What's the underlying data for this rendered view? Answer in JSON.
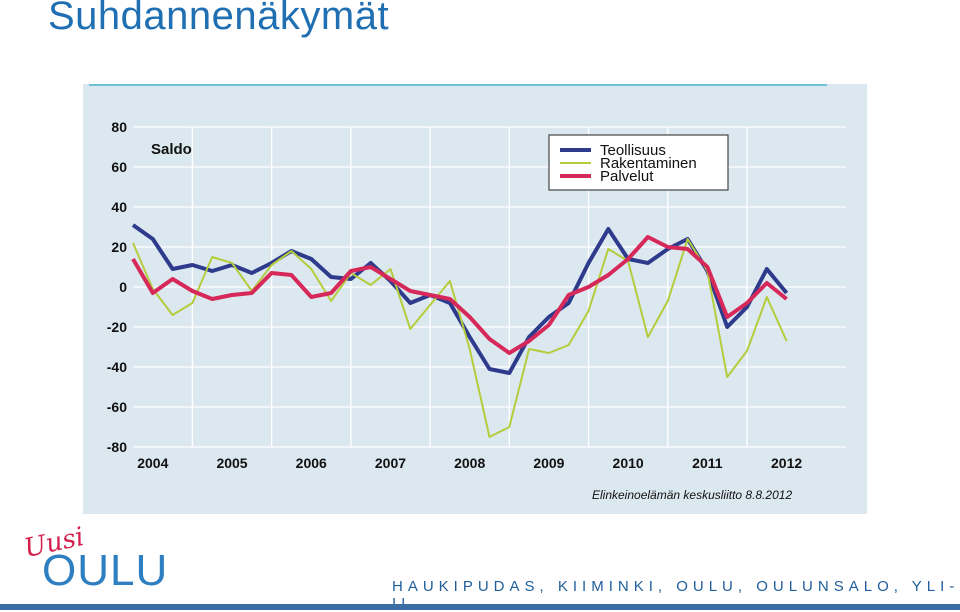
{
  "page": {
    "title": "Suhdannenäkymät",
    "source": "Elinkeinoelämän keskusliitto 8.8.2012",
    "footer": "HAUKIPUDAS, KIIMINKI, OULU, OULUNSALO, YLI-II",
    "logo": {
      "small_text": "Uusi",
      "big_text": "OULU"
    }
  },
  "chart_data": {
    "type": "line",
    "title": "Saldo",
    "xlabel": "",
    "ylabel": "",
    "ylim": [
      -80,
      80
    ],
    "yticks": [
      80,
      60,
      40,
      20,
      0,
      -20,
      -40,
      -60,
      -80
    ],
    "xtick_labels": [
      "2004",
      "2005",
      "2006",
      "2007",
      "2008",
      "2009",
      "2010",
      "2011",
      "2012"
    ],
    "xlim": [
      2004,
      2012.75
    ],
    "grid": true,
    "legend_position": "top-right",
    "series": [
      {
        "name": "Teollisuus",
        "color": "#2e3a8c",
        "points": [
          [
            2003.75,
            31
          ],
          [
            2004.0,
            24
          ],
          [
            2004.25,
            9
          ],
          [
            2004.5,
            11
          ],
          [
            2004.75,
            8
          ],
          [
            2005.0,
            11
          ],
          [
            2005.25,
            7
          ],
          [
            2005.5,
            12
          ],
          [
            2005.75,
            18
          ],
          [
            2006.0,
            14
          ],
          [
            2006.25,
            5
          ],
          [
            2006.5,
            4
          ],
          [
            2006.75,
            12
          ],
          [
            2007.0,
            3
          ],
          [
            2007.25,
            -8
          ],
          [
            2007.5,
            -4
          ],
          [
            2007.75,
            -8
          ],
          [
            2008.0,
            -25
          ],
          [
            2008.25,
            -41
          ],
          [
            2008.5,
            -43
          ],
          [
            2008.75,
            -25
          ],
          [
            2009.0,
            -15
          ],
          [
            2009.25,
            -8
          ],
          [
            2009.5,
            12
          ],
          [
            2009.75,
            29
          ],
          [
            2010.0,
            14
          ],
          [
            2010.25,
            12
          ],
          [
            2010.5,
            19
          ],
          [
            2010.75,
            24
          ],
          [
            2011.0,
            8
          ],
          [
            2011.25,
            -20
          ],
          [
            2011.5,
            -10
          ],
          [
            2011.75,
            9
          ],
          [
            2012.0,
            -3
          ]
        ]
      },
      {
        "name": "Rakentaminen",
        "color": "#b5cc3c",
        "points": [
          [
            2003.75,
            22
          ],
          [
            2004.0,
            -1
          ],
          [
            2004.25,
            -14
          ],
          [
            2004.5,
            -8
          ],
          [
            2004.75,
            15
          ],
          [
            2005.0,
            12
          ],
          [
            2005.25,
            -2
          ],
          [
            2005.5,
            11
          ],
          [
            2005.75,
            18
          ],
          [
            2006.0,
            9
          ],
          [
            2006.25,
            -7
          ],
          [
            2006.5,
            7
          ],
          [
            2006.75,
            1
          ],
          [
            2007.0,
            9
          ],
          [
            2007.25,
            -21
          ],
          [
            2007.5,
            -9
          ],
          [
            2007.75,
            3
          ],
          [
            2008.0,
            -31
          ],
          [
            2008.25,
            -75
          ],
          [
            2008.5,
            -70
          ],
          [
            2008.75,
            -31
          ],
          [
            2009.0,
            -33
          ],
          [
            2009.25,
            -29
          ],
          [
            2009.5,
            -12
          ],
          [
            2009.75,
            19
          ],
          [
            2010.0,
            13
          ],
          [
            2010.25,
            -25
          ],
          [
            2010.5,
            -7
          ],
          [
            2010.75,
            24
          ],
          [
            2011.0,
            8
          ],
          [
            2011.25,
            -45
          ],
          [
            2011.5,
            -32
          ],
          [
            2011.75,
            -5
          ],
          [
            2012.0,
            -27
          ]
        ]
      },
      {
        "name": "Palvelut",
        "color": "#d7285a",
        "points": [
          [
            2003.75,
            14
          ],
          [
            2004.0,
            -3
          ],
          [
            2004.25,
            4
          ],
          [
            2004.5,
            -2
          ],
          [
            2004.75,
            -6
          ],
          [
            2005.0,
            -4
          ],
          [
            2005.25,
            -3
          ],
          [
            2005.5,
            7
          ],
          [
            2005.75,
            6
          ],
          [
            2006.0,
            -5
          ],
          [
            2006.25,
            -3
          ],
          [
            2006.5,
            8
          ],
          [
            2006.75,
            10
          ],
          [
            2007.0,
            4
          ],
          [
            2007.25,
            -2
          ],
          [
            2007.5,
            -4
          ],
          [
            2007.75,
            -6
          ],
          [
            2008.0,
            -15
          ],
          [
            2008.25,
            -26
          ],
          [
            2008.5,
            -33
          ],
          [
            2008.75,
            -27
          ],
          [
            2009.0,
            -19
          ],
          [
            2009.25,
            -4
          ],
          [
            2009.5,
            0
          ],
          [
            2009.75,
            6
          ],
          [
            2010.0,
            14
          ],
          [
            2010.25,
            25
          ],
          [
            2010.5,
            20
          ],
          [
            2010.75,
            19
          ],
          [
            2011.0,
            10
          ],
          [
            2011.25,
            -15
          ],
          [
            2011.5,
            -8
          ],
          [
            2011.75,
            2
          ],
          [
            2012.0,
            -6
          ]
        ]
      }
    ]
  }
}
